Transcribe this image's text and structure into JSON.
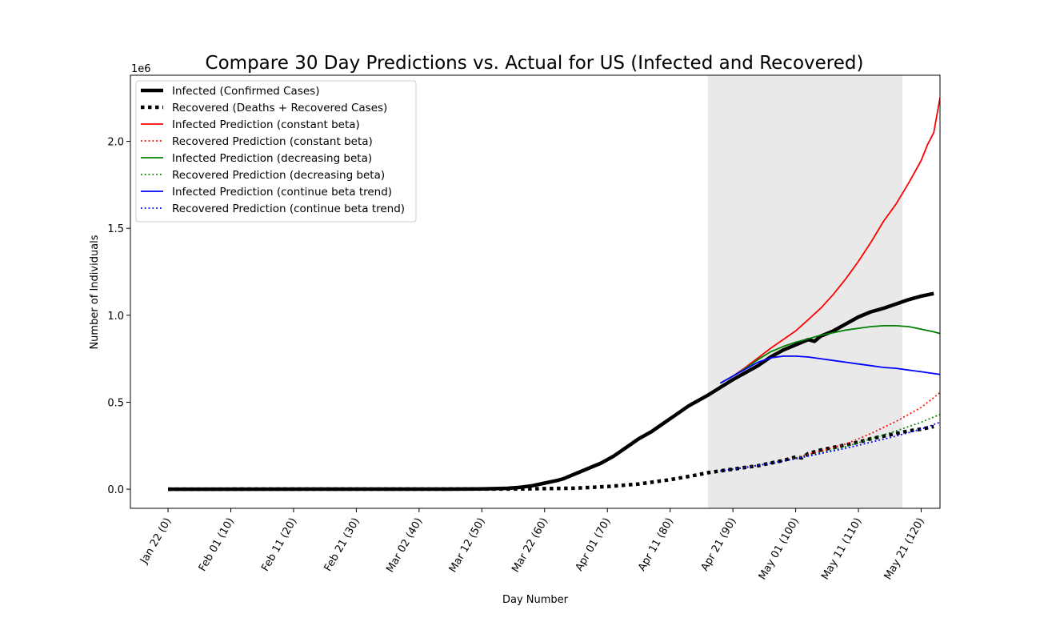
{
  "chart_data": {
    "type": "line",
    "title": "Compare 30 Day Predictions vs. Actual for US (Infected and Recovered)",
    "xlabel": "Day Number",
    "ylabel": "Number of Individuals",
    "y_offset_label": "1e6",
    "y_scale": 1000000,
    "xlim": [
      -6,
      123
    ],
    "ylim": [
      -110000,
      2380000
    ],
    "x_ticks": [
      0,
      10,
      20,
      30,
      40,
      50,
      60,
      70,
      80,
      90,
      100,
      110,
      120
    ],
    "x_tick_labels": [
      "Jan 22  (0)",
      "Feb 01  (10)",
      "Feb 11  (20)",
      "Feb 21  (30)",
      "Mar 02  (40)",
      "Mar 12  (50)",
      "Mar 22  (60)",
      "Apr 01  (70)",
      "Apr 11  (80)",
      "Apr 21  (90)",
      "May 01  (100)",
      "May 11  (110)",
      "May 21  (120)"
    ],
    "y_ticks": [
      0,
      500000,
      1000000,
      1500000,
      2000000
    ],
    "y_tick_labels": [
      "0.0",
      "0.5",
      "1.0",
      "1.5",
      "2.0"
    ],
    "prediction_window": [
      86,
      117
    ],
    "legend_position": "upper-left",
    "grid": false,
    "series": [
      {
        "name": "Infected (Confirmed Cases)",
        "color": "#000000",
        "style": "solid",
        "width": 4.5,
        "points": [
          [
            0,
            0
          ],
          [
            45,
            500
          ],
          [
            50,
            1500
          ],
          [
            52,
            3000
          ],
          [
            54,
            5000
          ],
          [
            56,
            10000
          ],
          [
            58,
            20000
          ],
          [
            60,
            35000
          ],
          [
            62,
            50000
          ],
          [
            63,
            60000
          ],
          [
            65,
            90000
          ],
          [
            67,
            120000
          ],
          [
            69,
            150000
          ],
          [
            71,
            190000
          ],
          [
            73,
            240000
          ],
          [
            75,
            290000
          ],
          [
            77,
            330000
          ],
          [
            79,
            380000
          ],
          [
            81,
            430000
          ],
          [
            83,
            480000
          ],
          [
            84,
            500000
          ],
          [
            86,
            540000
          ],
          [
            88,
            585000
          ],
          [
            90,
            630000
          ],
          [
            92,
            670000
          ],
          [
            94,
            710000
          ],
          [
            96,
            760000
          ],
          [
            98,
            800000
          ],
          [
            100,
            830000
          ],
          [
            102,
            860000
          ],
          [
            103,
            850000
          ],
          [
            104,
            880000
          ],
          [
            106,
            910000
          ],
          [
            108,
            950000
          ],
          [
            110,
            990000
          ],
          [
            112,
            1020000
          ],
          [
            113,
            1030000
          ],
          [
            114,
            1040000
          ],
          [
            116,
            1065000
          ],
          [
            118,
            1090000
          ],
          [
            120,
            1110000
          ],
          [
            122,
            1125000
          ]
        ]
      },
      {
        "name": "Recovered (Deaths + Recovered Cases)",
        "color": "#000000",
        "style": "dotted",
        "width": 4.5,
        "points": [
          [
            0,
            0
          ],
          [
            55,
            1000
          ],
          [
            60,
            3000
          ],
          [
            65,
            6000
          ],
          [
            70,
            15000
          ],
          [
            75,
            30000
          ],
          [
            80,
            55000
          ],
          [
            84,
            80000
          ],
          [
            86,
            95000
          ],
          [
            88,
            105000
          ],
          [
            90,
            115000
          ],
          [
            92,
            125000
          ],
          [
            94,
            135000
          ],
          [
            96,
            150000
          ],
          [
            98,
            165000
          ],
          [
            100,
            185000
          ],
          [
            101,
            180000
          ],
          [
            102,
            205000
          ],
          [
            104,
            225000
          ],
          [
            106,
            240000
          ],
          [
            108,
            255000
          ],
          [
            110,
            270000
          ],
          [
            112,
            290000
          ],
          [
            114,
            305000
          ],
          [
            116,
            320000
          ],
          [
            118,
            335000
          ],
          [
            120,
            345000
          ],
          [
            122,
            360000
          ]
        ]
      },
      {
        "name": "Infected Prediction (constant beta)",
        "color": "#ff0000",
        "style": "solid",
        "width": 1.8,
        "points": [
          [
            88,
            610000
          ],
          [
            90,
            650000
          ],
          [
            92,
            700000
          ],
          [
            94,
            755000
          ],
          [
            96,
            810000
          ],
          [
            98,
            860000
          ],
          [
            100,
            910000
          ],
          [
            102,
            975000
          ],
          [
            104,
            1040000
          ],
          [
            106,
            1120000
          ],
          [
            108,
            1210000
          ],
          [
            110,
            1310000
          ],
          [
            112,
            1420000
          ],
          [
            114,
            1540000
          ],
          [
            116,
            1640000
          ],
          [
            118,
            1760000
          ],
          [
            120,
            1890000
          ],
          [
            121,
            1980000
          ],
          [
            122,
            2050000
          ],
          [
            123,
            2250000
          ]
        ]
      },
      {
        "name": "Recovered Prediction (constant beta)",
        "color": "#ff0000",
        "style": "dotted",
        "width": 1.8,
        "points": [
          [
            88,
            105000
          ],
          [
            92,
            125000
          ],
          [
            96,
            150000
          ],
          [
            100,
            180000
          ],
          [
            104,
            220000
          ],
          [
            108,
            260000
          ],
          [
            112,
            320000
          ],
          [
            116,
            390000
          ],
          [
            120,
            470000
          ],
          [
            123,
            555000
          ]
        ]
      },
      {
        "name": "Infected Prediction (decreasing beta)",
        "color": "#008000",
        "style": "solid",
        "width": 1.8,
        "points": [
          [
            88,
            610000
          ],
          [
            90,
            650000
          ],
          [
            92,
            695000
          ],
          [
            94,
            745000
          ],
          [
            96,
            790000
          ],
          [
            98,
            820000
          ],
          [
            100,
            845000
          ],
          [
            102,
            865000
          ],
          [
            104,
            885000
          ],
          [
            106,
            900000
          ],
          [
            108,
            915000
          ],
          [
            110,
            925000
          ],
          [
            112,
            935000
          ],
          [
            114,
            940000
          ],
          [
            116,
            940000
          ],
          [
            118,
            935000
          ],
          [
            120,
            920000
          ],
          [
            122,
            905000
          ],
          [
            123,
            895000
          ]
        ]
      },
      {
        "name": "Recovered Prediction (decreasing beta)",
        "color": "#008000",
        "style": "dotted",
        "width": 1.8,
        "points": [
          [
            88,
            105000
          ],
          [
            92,
            125000
          ],
          [
            96,
            150000
          ],
          [
            100,
            178000
          ],
          [
            104,
            210000
          ],
          [
            108,
            245000
          ],
          [
            112,
            290000
          ],
          [
            116,
            335000
          ],
          [
            120,
            385000
          ],
          [
            123,
            430000
          ]
        ]
      },
      {
        "name": "Infected Prediction (continue beta trend)",
        "color": "#0000ff",
        "style": "solid",
        "width": 1.8,
        "points": [
          [
            88,
            610000
          ],
          [
            90,
            650000
          ],
          [
            92,
            690000
          ],
          [
            94,
            730000
          ],
          [
            96,
            755000
          ],
          [
            98,
            765000
          ],
          [
            100,
            765000
          ],
          [
            102,
            760000
          ],
          [
            104,
            750000
          ],
          [
            106,
            740000
          ],
          [
            108,
            730000
          ],
          [
            110,
            720000
          ],
          [
            112,
            710000
          ],
          [
            114,
            700000
          ],
          [
            116,
            695000
          ],
          [
            118,
            685000
          ],
          [
            120,
            675000
          ],
          [
            122,
            665000
          ],
          [
            123,
            660000
          ]
        ]
      },
      {
        "name": "Recovered Prediction (continue beta trend)",
        "color": "#0000ff",
        "style": "dotted",
        "width": 1.8,
        "points": [
          [
            88,
            105000
          ],
          [
            92,
            125000
          ],
          [
            96,
            148000
          ],
          [
            100,
            175000
          ],
          [
            104,
            205000
          ],
          [
            108,
            235000
          ],
          [
            112,
            270000
          ],
          [
            116,
            305000
          ],
          [
            120,
            345000
          ],
          [
            123,
            385000
          ]
        ]
      }
    ]
  }
}
